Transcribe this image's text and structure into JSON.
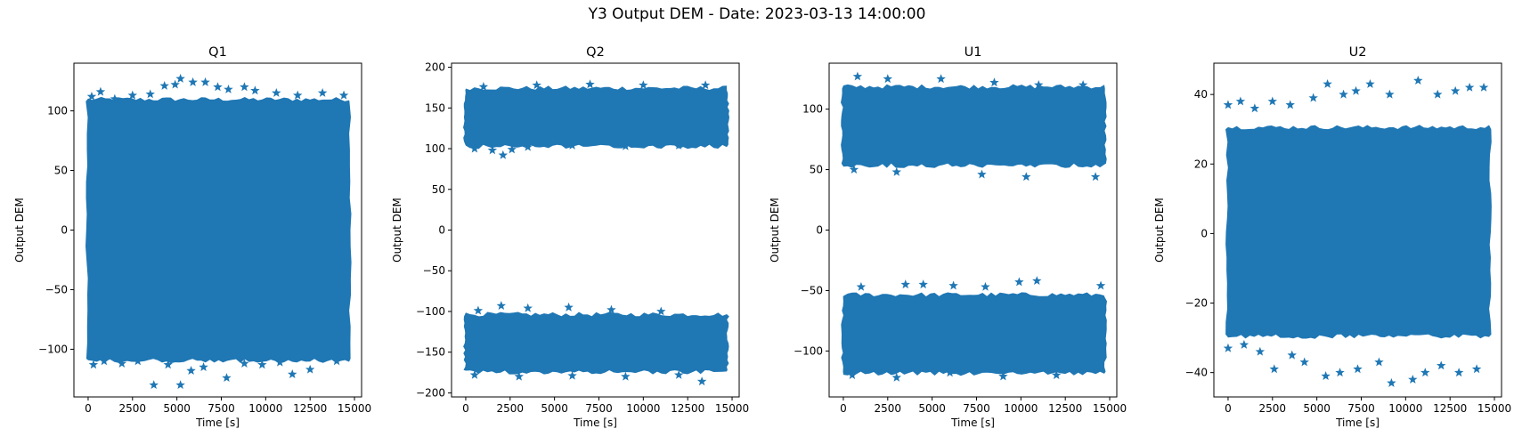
{
  "figure": {
    "title": "Y3 Output DEM - Date: 2023-03-13 14:00:00",
    "marker_color": "#1f77b4",
    "marker": "star"
  },
  "chart_data": [
    {
      "type": "scatter",
      "title": "Q1",
      "xlabel": "Time [s]",
      "ylabel": "Output DEM",
      "xlim": [
        -800,
        15400
      ],
      "ylim": [
        -140,
        140
      ],
      "xticks": [
        0,
        2500,
        5000,
        7500,
        10000,
        12500,
        15000
      ],
      "yticks": [
        -100,
        -50,
        0,
        50,
        100
      ],
      "grid": false,
      "bands": [
        {
          "x": [
            0,
            14700
          ],
          "y": [
            -108,
            108
          ]
        }
      ],
      "outliers": [
        [
          200,
          112
        ],
        [
          700,
          116
        ],
        [
          1500,
          110
        ],
        [
          2500,
          113
        ],
        [
          3500,
          114
        ],
        [
          4300,
          121
        ],
        [
          4900,
          122
        ],
        [
          5200,
          127
        ],
        [
          5900,
          124
        ],
        [
          6600,
          124
        ],
        [
          7300,
          120
        ],
        [
          7900,
          118
        ],
        [
          8800,
          120
        ],
        [
          9400,
          117
        ],
        [
          10600,
          115
        ],
        [
          11800,
          113
        ],
        [
          13200,
          115
        ],
        [
          14400,
          113
        ],
        [
          300,
          -113
        ],
        [
          900,
          -110
        ],
        [
          1900,
          -112
        ],
        [
          2800,
          -110
        ],
        [
          3700,
          -130
        ],
        [
          4500,
          -113
        ],
        [
          5200,
          -130
        ],
        [
          5800,
          -118
        ],
        [
          6500,
          -115
        ],
        [
          7800,
          -124
        ],
        [
          8800,
          -112
        ],
        [
          9800,
          -113
        ],
        [
          10800,
          -111
        ],
        [
          11500,
          -121
        ],
        [
          12500,
          -117
        ],
        [
          14000,
          -110
        ]
      ]
    },
    {
      "type": "scatter",
      "title": "Q2",
      "xlabel": "Time [s]",
      "ylabel": "Output DEM",
      "xlim": [
        -800,
        15400
      ],
      "ylim": [
        -205,
        205
      ],
      "xticks": [
        0,
        2500,
        5000,
        7500,
        10000,
        12500,
        15000
      ],
      "yticks": [
        -200,
        -150,
        -100,
        -50,
        0,
        50,
        100,
        150,
        200
      ],
      "grid": false,
      "bands": [
        {
          "x": [
            0,
            14700
          ],
          "y": [
            105,
            172
          ]
        },
        {
          "x": [
            0,
            14700
          ],
          "y": [
            -172,
            -106
          ]
        }
      ],
      "outliers": [
        [
          500,
          100
        ],
        [
          1500,
          98
        ],
        [
          2100,
          92
        ],
        [
          2600,
          99
        ],
        [
          3500,
          102
        ],
        [
          6000,
          104
        ],
        [
          9000,
          103
        ],
        [
          12000,
          104
        ],
        [
          1000,
          176
        ],
        [
          4000,
          178
        ],
        [
          7000,
          179
        ],
        [
          10000,
          178
        ],
        [
          13500,
          178
        ],
        [
          700,
          -99
        ],
        [
          2000,
          -93
        ],
        [
          3500,
          -96
        ],
        [
          5800,
          -95
        ],
        [
          8200,
          -98
        ],
        [
          11000,
          -100
        ],
        [
          500,
          -178
        ],
        [
          3000,
          -180
        ],
        [
          6000,
          -179
        ],
        [
          9000,
          -180
        ],
        [
          12000,
          -178
        ],
        [
          13300,
          -186
        ]
      ]
    },
    {
      "type": "scatter",
      "title": "U1",
      "xlabel": "Time [s]",
      "ylabel": "Output DEM",
      "xlim": [
        -800,
        15400
      ],
      "ylim": [
        -138,
        138
      ],
      "xticks": [
        0,
        2500,
        5000,
        7500,
        10000,
        12500,
        15000
      ],
      "yticks": [
        -100,
        -50,
        0,
        50,
        100
      ],
      "grid": false,
      "bands": [
        {
          "x": [
            0,
            14700
          ],
          "y": [
            55,
            117
          ]
        },
        {
          "x": [
            0,
            14700
          ],
          "y": [
            -117,
            -55
          ]
        }
      ],
      "outliers": [
        [
          800,
          127
        ],
        [
          2500,
          125
        ],
        [
          5500,
          125
        ],
        [
          8500,
          122
        ],
        [
          11000,
          120
        ],
        [
          13500,
          120
        ],
        [
          600,
          50
        ],
        [
          3000,
          48
        ],
        [
          7800,
          46
        ],
        [
          10300,
          44
        ],
        [
          14200,
          44
        ],
        [
          1000,
          -47
        ],
        [
          3500,
          -45
        ],
        [
          4500,
          -45
        ],
        [
          6200,
          -46
        ],
        [
          8000,
          -47
        ],
        [
          9900,
          -43
        ],
        [
          10900,
          -42
        ],
        [
          14500,
          -46
        ],
        [
          500,
          -120
        ],
        [
          3000,
          -122
        ],
        [
          6000,
          -118
        ],
        [
          9000,
          -121
        ],
        [
          12000,
          -120
        ]
      ]
    },
    {
      "type": "scatter",
      "title": "U2",
      "xlabel": "Time [s]",
      "ylabel": "Output DEM",
      "xlim": [
        -800,
        15400
      ],
      "ylim": [
        -47,
        49
      ],
      "xticks": [
        0,
        2500,
        5000,
        7500,
        10000,
        12500,
        15000
      ],
      "yticks": [
        -40,
        -20,
        0,
        20,
        40
      ],
      "grid": false,
      "bands": [
        {
          "x": [
            0,
            14700
          ],
          "y": [
            -29,
            30
          ]
        }
      ],
      "outliers": [
        [
          0,
          37
        ],
        [
          700,
          38
        ],
        [
          1500,
          36
        ],
        [
          2500,
          38
        ],
        [
          3500,
          37
        ],
        [
          4800,
          39
        ],
        [
          5600,
          43
        ],
        [
          6500,
          40
        ],
        [
          7200,
          41
        ],
        [
          8000,
          43
        ],
        [
          9100,
          40
        ],
        [
          10700,
          44
        ],
        [
          11800,
          40
        ],
        [
          12800,
          41
        ],
        [
          13600,
          42
        ],
        [
          14400,
          42
        ],
        [
          0,
          -33
        ],
        [
          900,
          -32
        ],
        [
          1800,
          -34
        ],
        [
          2600,
          -39
        ],
        [
          3600,
          -35
        ],
        [
          4300,
          -37
        ],
        [
          5500,
          -41
        ],
        [
          6300,
          -40
        ],
        [
          7300,
          -39
        ],
        [
          8500,
          -37
        ],
        [
          9200,
          -43
        ],
        [
          10400,
          -42
        ],
        [
          11100,
          -40
        ],
        [
          12000,
          -38
        ],
        [
          13000,
          -40
        ],
        [
          14000,
          -39
        ]
      ]
    }
  ]
}
